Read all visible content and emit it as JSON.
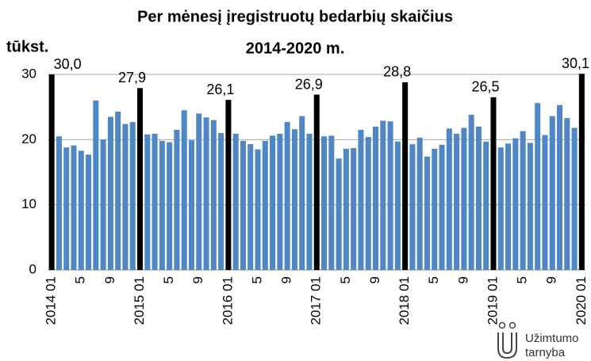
{
  "chart_data": {
    "type": "bar",
    "title": [
      "Per mėnesį įregistruotų bedarbių skaičius",
      "2014-2020 m."
    ],
    "y_label": "tūkst.",
    "logo": [
      "Užimtumo",
      "tarnyba"
    ],
    "categories": [
      "2014 01",
      null,
      null,
      null,
      "5",
      null,
      null,
      null,
      "9",
      null,
      null,
      null,
      "2015 01",
      null,
      null,
      null,
      "5",
      null,
      null,
      null,
      "9",
      null,
      null,
      null,
      "2016 01",
      null,
      null,
      null,
      "5",
      null,
      null,
      null,
      "9",
      null,
      null,
      null,
      "2017 01",
      null,
      null,
      null,
      "5",
      null,
      null,
      null,
      "9",
      null,
      null,
      null,
      "2018 01",
      null,
      null,
      null,
      "5",
      null,
      null,
      null,
      "9",
      null,
      null,
      null,
      "2019 01",
      null,
      null,
      null,
      "5",
      null,
      null,
      null,
      "9",
      null,
      null,
      null,
      "2020 01"
    ],
    "values": [
      30.0,
      20.5,
      18.8,
      19.1,
      18.3,
      17.7,
      26.0,
      20.0,
      23.5,
      24.3,
      22.4,
      22.7,
      27.9,
      20.8,
      20.9,
      19.8,
      19.6,
      21.5,
      24.5,
      19.9,
      24.0,
      23.4,
      23.0,
      21.0,
      26.1,
      20.9,
      19.8,
      19.3,
      18.5,
      19.8,
      20.6,
      20.9,
      22.7,
      21.6,
      23.6,
      20.9,
      26.9,
      20.5,
      20.6,
      17.1,
      18.6,
      18.7,
      21.5,
      20.4,
      22.0,
      22.9,
      22.8,
      19.7,
      28.8,
      19.3,
      20.3,
      17.4,
      18.6,
      19.2,
      21.7,
      20.9,
      21.8,
      23.8,
      22.0,
      19.7,
      26.5,
      18.8,
      19.4,
      20.2,
      21.3,
      19.5,
      25.6,
      20.7,
      23.6,
      25.3,
      23.3,
      21.8,
      30.1
    ],
    "value_labels": [
      "30,0",
      null,
      null,
      null,
      null,
      null,
      null,
      null,
      null,
      null,
      null,
      null,
      "27,9",
      null,
      null,
      null,
      null,
      null,
      null,
      null,
      null,
      null,
      null,
      null,
      "26,1",
      null,
      null,
      null,
      null,
      null,
      null,
      null,
      null,
      null,
      null,
      null,
      "26,9",
      null,
      null,
      null,
      null,
      null,
      null,
      null,
      null,
      null,
      null,
      null,
      "28,8",
      null,
      null,
      null,
      null,
      null,
      null,
      null,
      null,
      null,
      null,
      null,
      "26,5",
      null,
      null,
      null,
      null,
      null,
      null,
      null,
      null,
      null,
      null,
      null,
      "30,1"
    ],
    "colors": [
      "#000000",
      "#4f86c6",
      "#4f86c6",
      "#4f86c6",
      "#4f86c6",
      "#4f86c6",
      "#4f86c6",
      "#4f86c6",
      "#4f86c6",
      "#4f86c6",
      "#4f86c6",
      "#4f86c6",
      "#000000",
      "#4f86c6",
      "#4f86c6",
      "#4f86c6",
      "#4f86c6",
      "#4f86c6",
      "#4f86c6",
      "#4f86c6",
      "#4f86c6",
      "#4f86c6",
      "#4f86c6",
      "#4f86c6",
      "#000000",
      "#4f86c6",
      "#4f86c6",
      "#4f86c6",
      "#4f86c6",
      "#4f86c6",
      "#4f86c6",
      "#4f86c6",
      "#4f86c6",
      "#4f86c6",
      "#4f86c6",
      "#4f86c6",
      "#000000",
      "#4f86c6",
      "#4f86c6",
      "#4f86c6",
      "#4f86c6",
      "#4f86c6",
      "#4f86c6",
      "#4f86c6",
      "#4f86c6",
      "#4f86c6",
      "#4f86c6",
      "#4f86c6",
      "#000000",
      "#4f86c6",
      "#4f86c6",
      "#4f86c6",
      "#4f86c6",
      "#4f86c6",
      "#4f86c6",
      "#4f86c6",
      "#4f86c6",
      "#4f86c6",
      "#4f86c6",
      "#4f86c6",
      "#000000",
      "#4f86c6",
      "#4f86c6",
      "#4f86c6",
      "#4f86c6",
      "#4f86c6",
      "#4f86c6",
      "#4f86c6",
      "#4f86c6",
      "#4f86c6",
      "#4f86c6",
      "#4f86c6",
      "#000000"
    ],
    "ylim": [
      0,
      30
    ],
    "yticks": [
      0,
      10,
      20,
      30
    ],
    "grid": true
  }
}
